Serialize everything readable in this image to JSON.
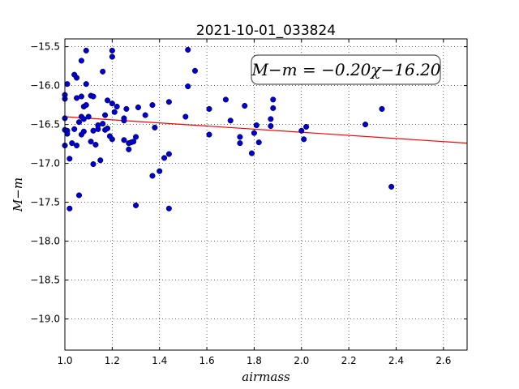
{
  "chart_data": {
    "type": "scatter",
    "title": "2021-10-01_033824",
    "xlabel": "airmass",
    "ylabel": "M−m",
    "xlim": [
      1.0,
      2.7
    ],
    "ylim": [
      -15.4,
      -19.4
    ],
    "y_inverted": true,
    "xticks": [
      1.0,
      1.2,
      1.4,
      1.6,
      1.8,
      2.0,
      2.2,
      2.4,
      2.6
    ],
    "xtick_labels": [
      "1.0",
      "1.2",
      "1.4",
      "1.6",
      "1.8",
      "2.0",
      "2.2",
      "2.4",
      "2.6"
    ],
    "yticks": [
      -15.5,
      -16.0,
      -16.5,
      -17.0,
      -17.5,
      -18.0,
      -18.5,
      -19.0
    ],
    "ytick_labels": [
      "−15.5",
      "−16.0",
      "−16.5",
      "−17.0",
      "−17.5",
      "−18.0",
      "−18.5",
      "−19.0"
    ],
    "grid": true,
    "annotation": "M−m = −0.20χ−16.20",
    "fit_line": {
      "slope": -0.2,
      "intercept": -16.2,
      "color": "#ff0000"
    },
    "marker_color": "#0000cc",
    "series": [
      {
        "points": [
          [
            1.0,
            -16.12
          ],
          [
            1.0,
            -16.17
          ],
          [
            1.0,
            -16.42
          ],
          [
            1.0,
            -16.57
          ],
          [
            1.0,
            -16.77
          ],
          [
            1.01,
            -15.98
          ],
          [
            1.01,
            -16.58
          ],
          [
            1.01,
            -16.62
          ],
          [
            1.02,
            -16.94
          ],
          [
            1.02,
            -17.58
          ],
          [
            1.03,
            -16.74
          ],
          [
            1.04,
            -16.56
          ],
          [
            1.04,
            -15.86
          ],
          [
            1.05,
            -15.9
          ],
          [
            1.05,
            -16.16
          ],
          [
            1.05,
            -16.77
          ],
          [
            1.06,
            -17.41
          ],
          [
            1.06,
            -16.47
          ],
          [
            1.07,
            -15.68
          ],
          [
            1.07,
            -16.14
          ],
          [
            1.07,
            -16.4
          ],
          [
            1.07,
            -16.63
          ],
          [
            1.08,
            -16.27
          ],
          [
            1.08,
            -16.43
          ],
          [
            1.08,
            -16.59
          ],
          [
            1.09,
            -15.55
          ],
          [
            1.09,
            -15.98
          ],
          [
            1.09,
            -16.25
          ],
          [
            1.1,
            -16.4
          ],
          [
            1.11,
            -16.13
          ],
          [
            1.11,
            -16.72
          ],
          [
            1.12,
            -16.14
          ],
          [
            1.12,
            -17.01
          ],
          [
            1.12,
            -16.58
          ],
          [
            1.13,
            -16.76
          ],
          [
            1.14,
            -16.51
          ],
          [
            1.14,
            -16.56
          ],
          [
            1.15,
            -16.96
          ],
          [
            1.16,
            -15.82
          ],
          [
            1.16,
            -16.49
          ],
          [
            1.17,
            -16.38
          ],
          [
            1.17,
            -16.57
          ],
          [
            1.18,
            -16.19
          ],
          [
            1.18,
            -16.55
          ],
          [
            1.19,
            -16.65
          ],
          [
            1.2,
            -15.55
          ],
          [
            1.2,
            -15.63
          ],
          [
            1.2,
            -16.23
          ],
          [
            1.2,
            -16.69
          ],
          [
            1.21,
            -16.34
          ],
          [
            1.22,
            -16.27
          ],
          [
            1.25,
            -16.42
          ],
          [
            1.25,
            -16.45
          ],
          [
            1.25,
            -16.7
          ],
          [
            1.26,
            -16.3
          ],
          [
            1.27,
            -16.82
          ],
          [
            1.27,
            -16.74
          ],
          [
            1.28,
            -16.73
          ],
          [
            1.29,
            -16.72
          ],
          [
            1.3,
            -16.66
          ],
          [
            1.3,
            -17.54
          ],
          [
            1.31,
            -16.28
          ],
          [
            1.34,
            -16.38
          ],
          [
            1.37,
            -16.25
          ],
          [
            1.37,
            -17.16
          ],
          [
            1.38,
            -16.54
          ],
          [
            1.4,
            -17.1
          ],
          [
            1.42,
            -16.93
          ],
          [
            1.44,
            -16.88
          ],
          [
            1.44,
            -16.21
          ],
          [
            1.44,
            -17.58
          ],
          [
            1.51,
            -16.4
          ],
          [
            1.52,
            -15.54
          ],
          [
            1.52,
            -16.01
          ],
          [
            1.55,
            -15.81
          ],
          [
            1.61,
            -16.3
          ],
          [
            1.61,
            -16.63
          ],
          [
            1.68,
            -16.18
          ],
          [
            1.7,
            -16.45
          ],
          [
            1.74,
            -16.66
          ],
          [
            1.74,
            -16.74
          ],
          [
            1.76,
            -16.26
          ],
          [
            1.79,
            -16.87
          ],
          [
            1.8,
            -16.61
          ],
          [
            1.81,
            -16.51
          ],
          [
            1.82,
            -16.73
          ],
          [
            1.87,
            -16.43
          ],
          [
            1.87,
            -16.52
          ],
          [
            1.88,
            -16.29
          ],
          [
            1.88,
            -16.18
          ],
          [
            2.0,
            -16.58
          ],
          [
            2.01,
            -16.69
          ],
          [
            2.02,
            -16.53
          ],
          [
            2.27,
            -16.5
          ],
          [
            2.34,
            -16.3
          ],
          [
            2.38,
            -17.3
          ]
        ]
      }
    ]
  }
}
